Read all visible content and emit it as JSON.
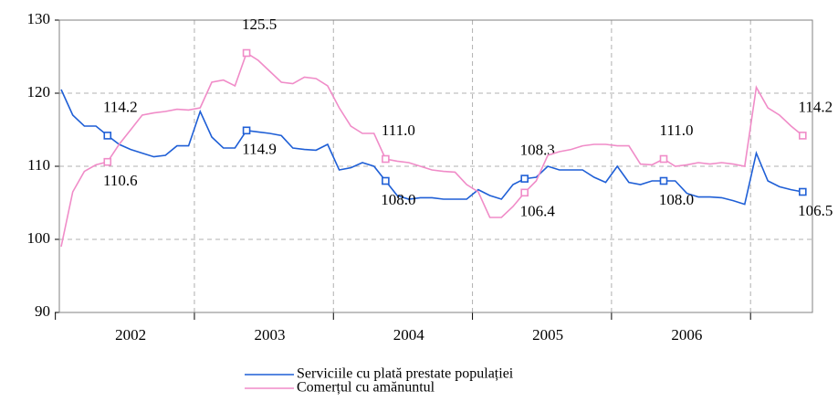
{
  "chart_data": {
    "type": "line",
    "categories": [
      null,
      null,
      null,
      null,
      null,
      null,
      "2002",
      null,
      null,
      null,
      null,
      null,
      null,
      null,
      null,
      null,
      null,
      null,
      "2003",
      null,
      null,
      null,
      null,
      null,
      null,
      null,
      null,
      null,
      null,
      null,
      "2004",
      null,
      null,
      null,
      null,
      null,
      null,
      null,
      null,
      null,
      null,
      null,
      "2005",
      null,
      null,
      null,
      null,
      null,
      null,
      null,
      null,
      null,
      null,
      null,
      "2006",
      null,
      null,
      null,
      null,
      null,
      null,
      null,
      null,
      null,
      null
    ],
    "series": [
      {
        "name": "Serviciile cu plată prestate populației",
        "color": "#1f5fd6",
        "values": [
          120.5,
          117,
          115.5,
          115.5,
          114.2,
          113,
          112.3,
          111.8,
          111.3,
          111.5,
          112.8,
          112.8,
          117.5,
          114,
          112.5,
          112.5,
          114.9,
          114.7,
          114.5,
          114.2,
          112.5,
          112.3,
          112.2,
          113,
          109.5,
          109.8,
          110.5,
          110,
          108.0,
          106,
          105.5,
          105.7,
          105.7,
          105.5,
          105.5,
          105.5,
          106.8,
          106,
          105.5,
          107.5,
          108.3,
          108.5,
          110,
          109.5,
          109.5,
          109.5,
          108.5,
          107.8,
          110,
          107.8,
          107.5,
          108,
          108.0,
          108,
          106.3,
          105.8,
          105.8,
          105.7,
          105.3,
          104.8,
          111.8,
          108,
          107.2,
          106.8,
          106.5
        ],
        "value_labels": [
          null,
          null,
          null,
          null,
          "114.2",
          null,
          null,
          null,
          null,
          null,
          null,
          null,
          null,
          null,
          null,
          null,
          "114.9",
          null,
          null,
          null,
          null,
          null,
          null,
          null,
          null,
          null,
          null,
          null,
          "108.0",
          null,
          null,
          null,
          null,
          null,
          null,
          null,
          null,
          null,
          null,
          null,
          "108.3",
          null,
          null,
          null,
          null,
          null,
          null,
          null,
          null,
          null,
          null,
          null,
          "108.0",
          null,
          null,
          null,
          null,
          null,
          null,
          null,
          null,
          null,
          null,
          null,
          "106.5"
        ]
      },
      {
        "name": "Comerțul cu amănuntul",
        "color": "#f08cc8",
        "values": [
          99,
          106.5,
          109.3,
          110.2,
          110.6,
          113,
          115,
          117,
          117.3,
          117.5,
          117.8,
          117.7,
          118,
          121.5,
          121.8,
          121,
          125.5,
          124.5,
          123,
          121.5,
          121.3,
          122.2,
          122,
          121,
          118,
          115.5,
          114.5,
          114.5,
          111.0,
          110.7,
          110.5,
          110,
          109.5,
          109.3,
          109.2,
          107.5,
          106.5,
          103,
          103,
          104.5,
          106.4,
          108,
          111.5,
          112,
          112.3,
          112.8,
          113,
          113,
          112.8,
          112.8,
          110.3,
          110.2,
          111.0,
          110,
          110.2,
          110.5,
          110.3,
          110.5,
          110.3,
          110,
          120.8,
          118,
          117,
          115.5,
          114.2
        ],
        "value_labels": [
          null,
          null,
          null,
          null,
          "110.6",
          null,
          null,
          null,
          null,
          null,
          null,
          null,
          null,
          null,
          null,
          null,
          "125.5",
          null,
          null,
          null,
          null,
          null,
          null,
          null,
          null,
          null,
          null,
          null,
          "111.0",
          null,
          null,
          null,
          null,
          null,
          null,
          null,
          null,
          null,
          null,
          null,
          "106.4",
          null,
          null,
          null,
          null,
          null,
          null,
          null,
          null,
          null,
          null,
          null,
          "111.0",
          null,
          null,
          null,
          null,
          null,
          null,
          null,
          null,
          null,
          null,
          null,
          "114.2"
        ]
      }
    ],
    "ylim": [
      90,
      130
    ],
    "yticks": [
      90,
      100,
      110,
      120,
      130
    ],
    "grid": true
  }
}
